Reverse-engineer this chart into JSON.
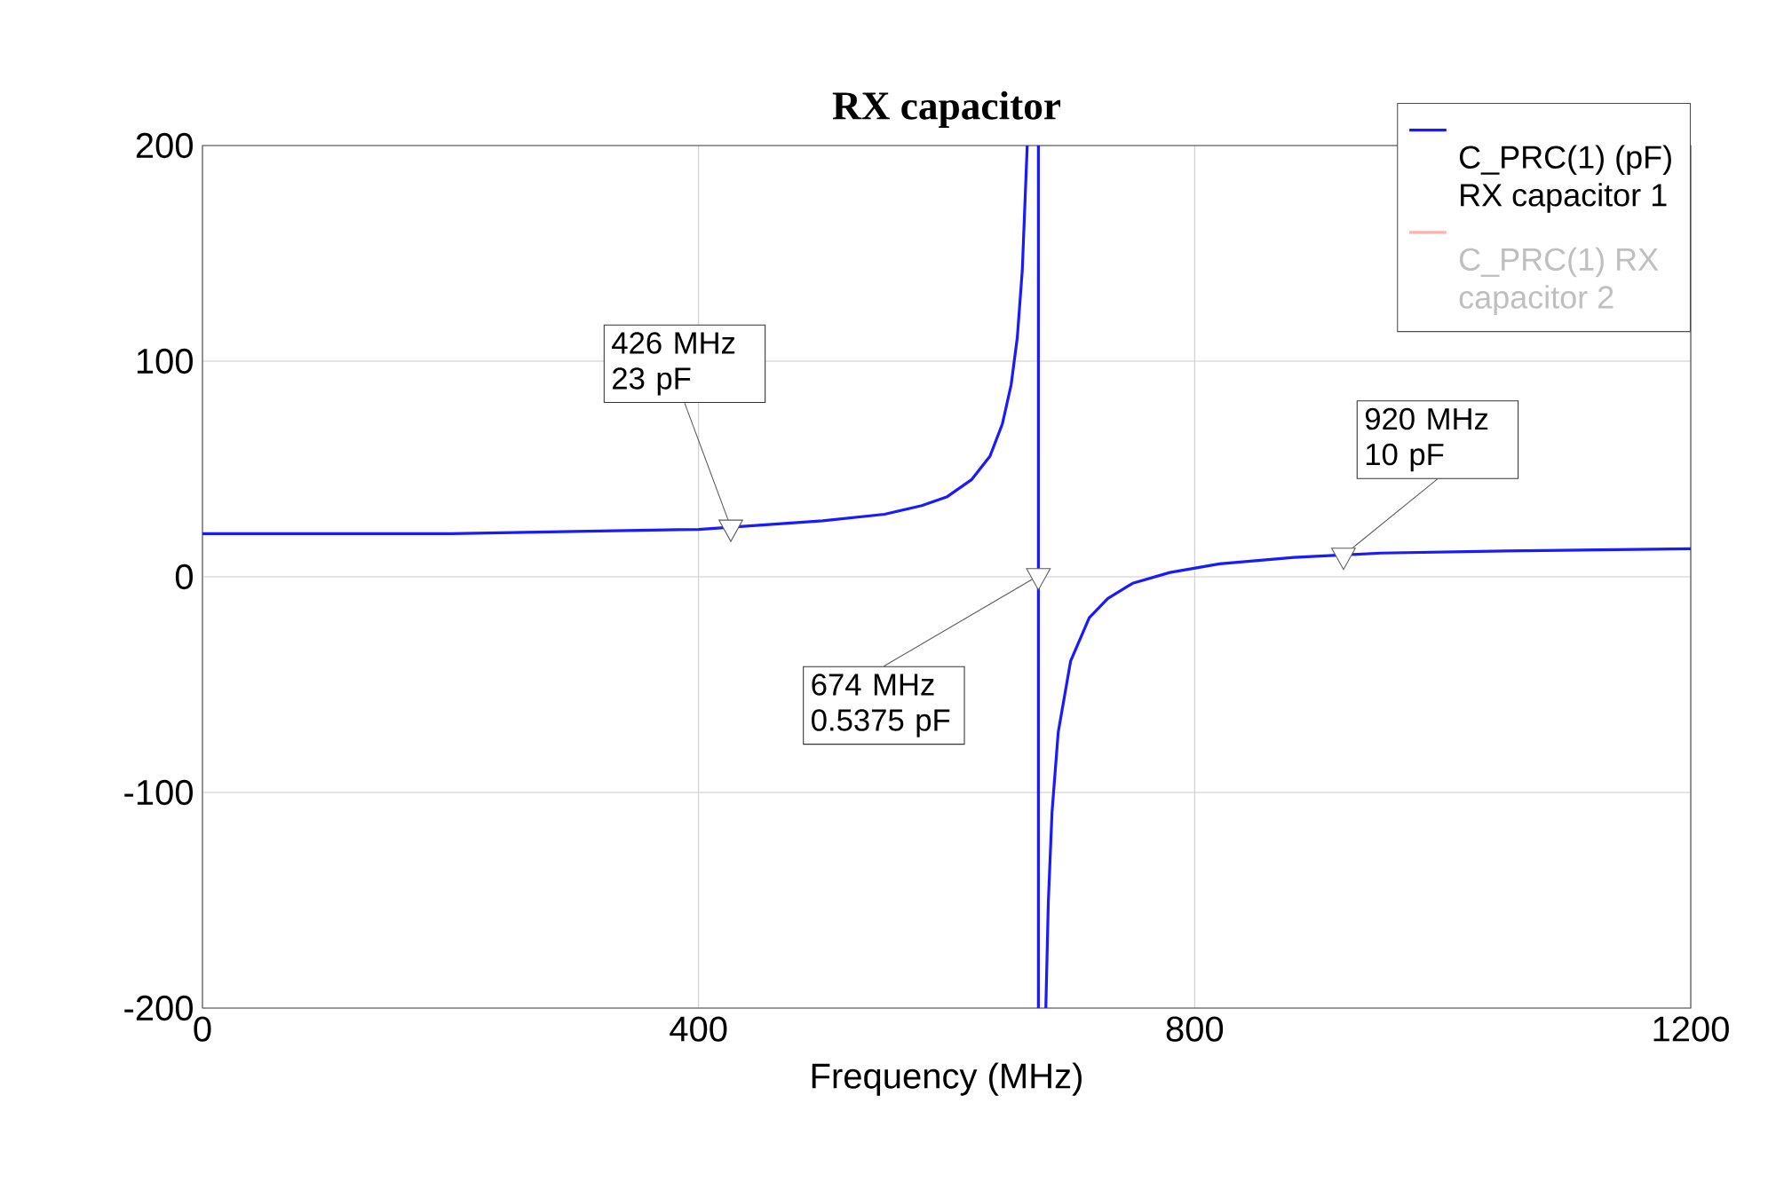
{
  "chart_data": {
    "type": "line",
    "title": "RX capacitor",
    "xlabel": "Frequency (MHz)",
    "xlim": [
      0,
      1200
    ],
    "ylim": [
      -200,
      200
    ],
    "xticks": [
      0,
      400,
      800,
      1200
    ],
    "yticks": [
      -200,
      -100,
      0,
      100,
      200
    ],
    "grid": true,
    "legend": "top right",
    "marker": "none",
    "series": [
      {
        "name": "C_PRC(1) (pF) RX capacitor 1",
        "color": "#1a1aff",
        "x": [
          0,
          100,
          200,
          300,
          400,
          450,
          500,
          550,
          580,
          600,
          620,
          635,
          645,
          652,
          657,
          661,
          665,
          669,
          674,
          674,
          677,
          680,
          682,
          685,
          690,
          700,
          715,
          730,
          750,
          780,
          820,
          880,
          950,
          1050,
          1200
        ],
        "values": [
          20,
          20,
          20,
          21,
          22,
          24,
          26,
          29,
          33,
          37,
          45,
          56,
          71,
          89,
          111,
          142,
          200,
          null,
          200,
          -200,
          null,
          -200,
          -151,
          -109,
          -72,
          -39,
          -19,
          -10,
          -3,
          2,
          6,
          9,
          11,
          12,
          13
        ]
      },
      {
        "name": "C_PRC(1) RX capacitor 2",
        "color": "#ffb0b0"
      }
    ],
    "annotations": [
      {
        "text": "426 MHz 23 pF",
        "x": 426,
        "y": 23
      },
      {
        "text": "674 MHz 0.5375 pF",
        "x": 674,
        "y": 0.5375
      },
      {
        "text": "920 MHz 10 pF",
        "x": 920,
        "y": 10
      }
    ]
  }
}
